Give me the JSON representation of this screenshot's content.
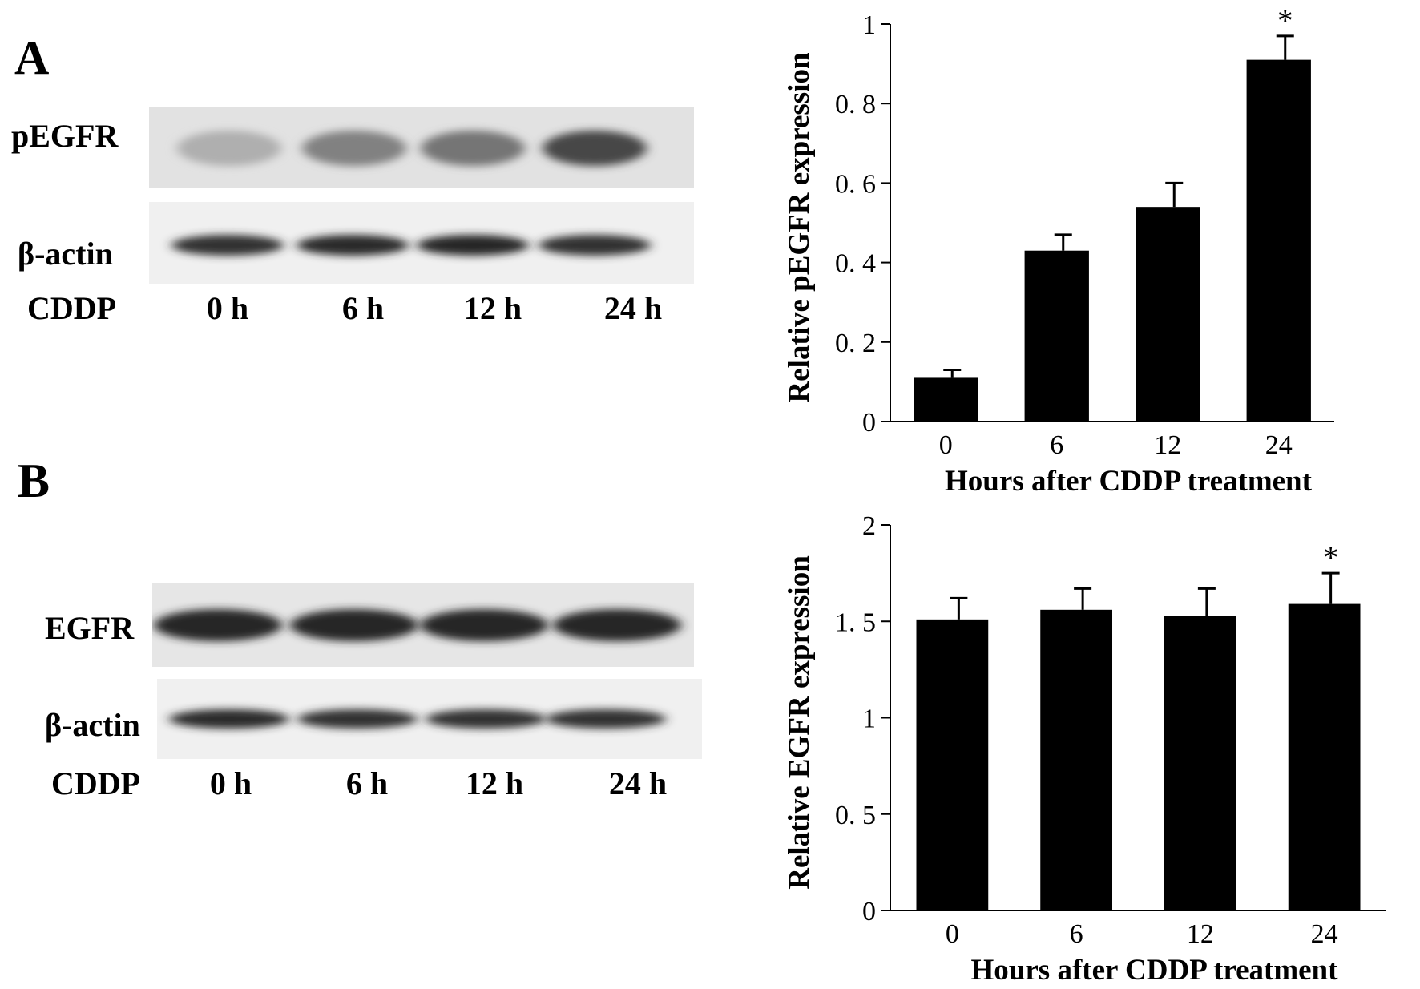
{
  "panels": [
    {
      "letter": "A",
      "blot": {
        "rows": [
          {
            "label": "pEGFR",
            "intensities": [
              0.35,
              0.55,
              0.6,
              0.8
            ]
          },
          {
            "label": "β-actin",
            "intensities": [
              0.9,
              0.92,
              0.95,
              0.9
            ]
          }
        ],
        "treatment_label": "CDDP",
        "lanes": [
          "0 h",
          "6 h",
          "12 h",
          "24 h"
        ]
      }
    },
    {
      "letter": "B",
      "blot": {
        "rows": [
          {
            "label": "EGFR",
            "intensities": [
              0.95,
              0.95,
              0.95,
              0.95
            ]
          },
          {
            "label": "β-actin",
            "intensities": [
              0.92,
              0.9,
              0.9,
              0.9
            ]
          }
        ],
        "treatment_label": "CDDP",
        "lanes": [
          "0 h",
          "6 h",
          "12 h",
          "24 h"
        ]
      }
    }
  ],
  "chart_data": [
    {
      "type": "bar",
      "categories": [
        "0",
        "6",
        "12",
        "24"
      ],
      "values": [
        0.11,
        0.43,
        0.54,
        0.91
      ],
      "errors": [
        0.02,
        0.04,
        0.06,
        0.06
      ],
      "annotations": [
        "",
        "",
        "",
        "*"
      ],
      "xlabel": "Hours after CDDP treatment",
      "ylabel": "Relative  pEGFR expression",
      "ylim": [
        0,
        1
      ],
      "yticks": [
        0,
        0.2,
        0.4,
        0.6,
        0.8,
        1
      ],
      "ytick_labels": [
        "0",
        "0. 2",
        "0. 4",
        "0. 6",
        "0. 8",
        "1"
      ],
      "bar_color": "#000000"
    },
    {
      "type": "bar",
      "categories": [
        "0",
        "6",
        "12",
        "24"
      ],
      "values": [
        1.51,
        1.56,
        1.53,
        1.59
      ],
      "errors": [
        0.11,
        0.11,
        0.14,
        0.16
      ],
      "annotations": [
        "",
        "",
        "",
        "*"
      ],
      "xlabel": "Hours after CDDP treatment",
      "ylabel": "Relative EGFR expression",
      "ylim": [
        0,
        2
      ],
      "yticks": [
        0,
        0.5,
        1,
        1.5,
        2
      ],
      "ytick_labels": [
        "0",
        "0. 5",
        "1",
        "1. 5",
        "2"
      ],
      "bar_color": "#000000"
    }
  ]
}
